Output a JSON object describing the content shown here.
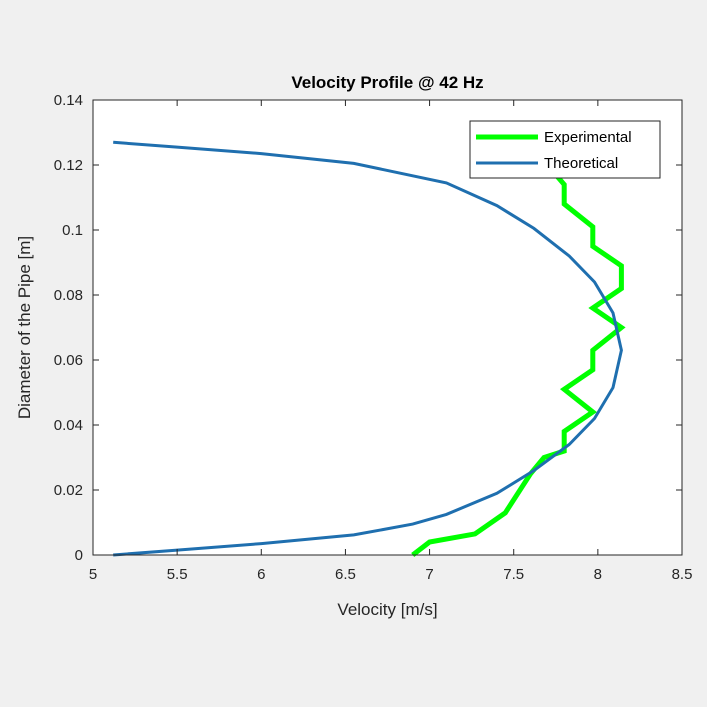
{
  "chart_data": {
    "type": "line",
    "title": "Velocity Profile @ 42 Hz",
    "xlabel": "Velocity [m/s]",
    "ylabel": "Diameter of the Pipe [m]",
    "xlim": [
      5,
      8.5
    ],
    "ylim": [
      0,
      0.14
    ],
    "xticks": [
      "5",
      "5.5",
      "6",
      "6.5",
      "7",
      "7.5",
      "8",
      "8.5"
    ],
    "xtick_values": [
      5,
      5.5,
      6,
      6.5,
      7,
      7.5,
      8,
      8.5
    ],
    "yticks": [
      "0",
      "0.02",
      "0.04",
      "0.06",
      "0.08",
      "0.1",
      "0.12",
      "0.14"
    ],
    "ytick_values": [
      0,
      0.02,
      0.04,
      0.06,
      0.08,
      0.1,
      0.12,
      0.14
    ],
    "grid": false,
    "legend_position": "top-right",
    "series": [
      {
        "name": "Experimental",
        "color": "#00ff00",
        "x": [
          6.9,
          7.0,
          7.27,
          7.45,
          7.6,
          7.68,
          7.8,
          7.8,
          7.97,
          7.8,
          7.97,
          7.97,
          8.14,
          7.97,
          8.14,
          8.14,
          7.97,
          7.97,
          7.8,
          7.8,
          7.75
        ],
        "y": [
          0.0,
          0.004,
          0.0065,
          0.013,
          0.025,
          0.03,
          0.032,
          0.038,
          0.044,
          0.051,
          0.057,
          0.063,
          0.07,
          0.076,
          0.082,
          0.089,
          0.095,
          0.101,
          0.108,
          0.114,
          0.117
        ]
      },
      {
        "name": "Theoretical",
        "color": "#1f6faf",
        "x": [
          5.12,
          5.5,
          6.0,
          6.55,
          6.9,
          7.1,
          7.4,
          7.62,
          7.83,
          7.98,
          8.09,
          8.14,
          8.09,
          7.98,
          7.83,
          7.62,
          7.4,
          7.1,
          6.55,
          6.0,
          5.5,
          5.12
        ],
        "y": [
          0.0,
          0.0015,
          0.0035,
          0.0062,
          0.0095,
          0.0125,
          0.019,
          0.026,
          0.034,
          0.042,
          0.0515,
          0.063,
          0.0745,
          0.084,
          0.092,
          0.1005,
          0.1075,
          0.1145,
          0.1205,
          0.1235,
          0.1255,
          0.127
        ]
      }
    ]
  }
}
